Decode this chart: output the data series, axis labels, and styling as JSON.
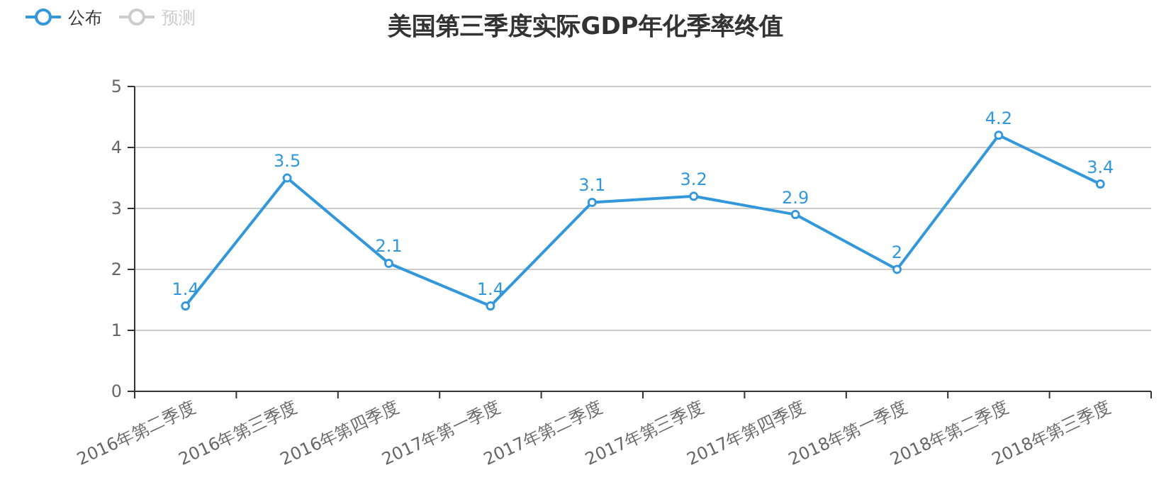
{
  "chart_data": {
    "type": "line",
    "title": "美国第三季度实际GDP年化季率终值",
    "categories": [
      "2016年第二季度",
      "2016年第三季度",
      "2016年第四季度",
      "2017年第一季度",
      "2017年第二季度",
      "2017年第三季度",
      "2017年第四季度",
      "2018年第一季度",
      "2018年第二季度",
      "2018年第三季度"
    ],
    "series": [
      {
        "name": "公布",
        "color": "#3398db",
        "values": [
          1.4,
          3.5,
          2.1,
          1.4,
          3.1,
          3.2,
          2.9,
          2,
          4.2,
          3.4
        ]
      },
      {
        "name": "预测",
        "color": "#cccccc",
        "values": [
          null,
          null,
          null,
          null,
          null,
          null,
          null,
          null,
          null,
          null
        ]
      }
    ],
    "ylim": [
      0,
      5
    ],
    "yticks": [
      0,
      1,
      2,
      3,
      4,
      5
    ],
    "grid": "y",
    "legend": "top left",
    "marker": "circle",
    "line_style": "solid",
    "data_labels": true
  }
}
